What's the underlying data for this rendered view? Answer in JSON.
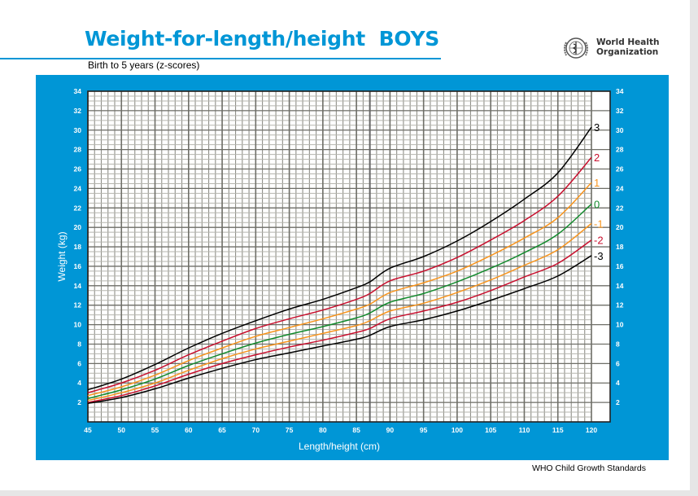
{
  "header": {
    "title": "Weight-for-length/height  BOYS",
    "subtitle": "Birth to 5 years (z-scores)",
    "organization_line1": "World Health",
    "organization_line2": "Organization",
    "logo_icon": "who-emblem-icon"
  },
  "footer": {
    "source": "WHO Child Growth Standards"
  },
  "colors": {
    "brand_blue": "#0096d6",
    "z3": "#000000",
    "z2": "#c8102e",
    "z1": "#f7941d",
    "z0": "#128a2c"
  },
  "chart_data": {
    "type": "line",
    "title": "Weight-for-length/height  BOYS",
    "subtitle": "Birth to 5 years (z-scores)",
    "xlabel": "Length/height (cm)",
    "ylabel": "Weight (kg)",
    "xlim": [
      45,
      120
    ],
    "ylim": [
      0,
      34
    ],
    "x_ticks": [
      45,
      50,
      55,
      60,
      65,
      70,
      75,
      80,
      85,
      90,
      95,
      100,
      105,
      110,
      115,
      120
    ],
    "y_ticks": [
      2,
      4,
      6,
      8,
      10,
      12,
      14,
      16,
      18,
      20,
      22,
      24,
      26,
      28,
      30,
      32,
      34
    ],
    "grid": true,
    "grid_minor_x": 1,
    "grid_minor_y": 0.5,
    "length_height_switch": 87,
    "legend": "line-end labels on right",
    "x": [
      45,
      50,
      55,
      60,
      65,
      70,
      75,
      80,
      85,
      87,
      90,
      95,
      100,
      105,
      110,
      115,
      120
    ],
    "series": [
      {
        "name": "3",
        "color_key": "z3",
        "values": [
          3.3,
          4.4,
          5.9,
          7.6,
          9.1,
          10.4,
          11.6,
          12.6,
          13.8,
          14.4,
          15.8,
          17.0,
          18.6,
          20.6,
          22.9,
          25.6,
          30.3
        ]
      },
      {
        "name": "2",
        "color_key": "z2",
        "values": [
          3.0,
          4.0,
          5.3,
          6.9,
          8.3,
          9.6,
          10.6,
          11.5,
          12.6,
          13.2,
          14.5,
          15.5,
          16.9,
          18.7,
          20.7,
          23.2,
          27.2
        ]
      },
      {
        "name": "1",
        "color_key": "z1",
        "values": [
          2.7,
          3.6,
          4.8,
          6.3,
          7.6,
          8.8,
          9.7,
          10.6,
          11.6,
          12.1,
          13.3,
          14.3,
          15.5,
          17.1,
          18.9,
          21.0,
          24.6
        ]
      },
      {
        "name": "0",
        "color_key": "z0",
        "values": [
          2.4,
          3.3,
          4.4,
          5.8,
          7.0,
          8.1,
          9.0,
          9.8,
          10.7,
          11.2,
          12.3,
          13.2,
          14.4,
          15.8,
          17.4,
          19.3,
          22.4
        ]
      },
      {
        "name": "-1",
        "color_key": "z1",
        "values": [
          2.2,
          3.0,
          4.0,
          5.3,
          6.5,
          7.5,
          8.3,
          9.1,
          9.9,
          10.4,
          11.4,
          12.2,
          13.3,
          14.6,
          16.1,
          17.7,
          20.4
        ]
      },
      {
        "name": "-2",
        "color_key": "z2",
        "values": [
          2.0,
          2.7,
          3.7,
          4.9,
          6.0,
          6.9,
          7.7,
          8.4,
          9.2,
          9.6,
          10.6,
          11.4,
          12.3,
          13.5,
          14.9,
          16.3,
          18.7
        ]
      },
      {
        "name": "-3",
        "color_key": "z3",
        "values": [
          1.9,
          2.5,
          3.4,
          4.5,
          5.5,
          6.4,
          7.1,
          7.8,
          8.5,
          8.9,
          9.8,
          10.5,
          11.4,
          12.5,
          13.7,
          15.0,
          17.1
        ]
      }
    ]
  }
}
